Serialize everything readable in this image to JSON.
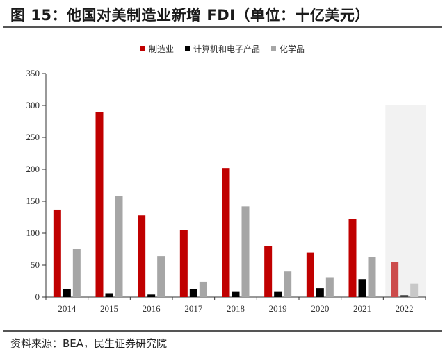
{
  "header": {
    "title": "图 15：他国对美制造业新增 FDI（单位：十亿美元）"
  },
  "footer": {
    "source": "资料来源：BEA，民生证券研究院"
  },
  "chart_data": {
    "type": "bar",
    "categories": [
      "2014",
      "2015",
      "2016",
      "2017",
      "2018",
      "2019",
      "2020",
      "2021",
      "2022"
    ],
    "series": [
      {
        "name": "制造业",
        "color": "#c00000",
        "values": [
          137,
          290,
          128,
          105,
          202,
          80,
          70,
          122,
          55
        ]
      },
      {
        "name": "计算机和电子产品",
        "color": "#000000",
        "values": [
          13,
          6,
          4,
          13,
          8,
          8,
          14,
          28,
          3
        ]
      },
      {
        "name": "化学品",
        "color": "#a6a6a6",
        "values": [
          75,
          158,
          64,
          24,
          142,
          40,
          31,
          62,
          21
        ]
      }
    ],
    "highlight": {
      "category": "2022",
      "series_colors": [
        "#cc4b4b",
        "#404040",
        "#c8c8c8"
      ],
      "background": "#f2f2f2"
    },
    "y_ticks": [
      "0",
      "50",
      "100",
      "150",
      "200",
      "250",
      "300",
      "350"
    ],
    "ylim": [
      0,
      350
    ],
    "grid": false,
    "legend_position": "top-center",
    "xlabel": "",
    "ylabel": ""
  }
}
